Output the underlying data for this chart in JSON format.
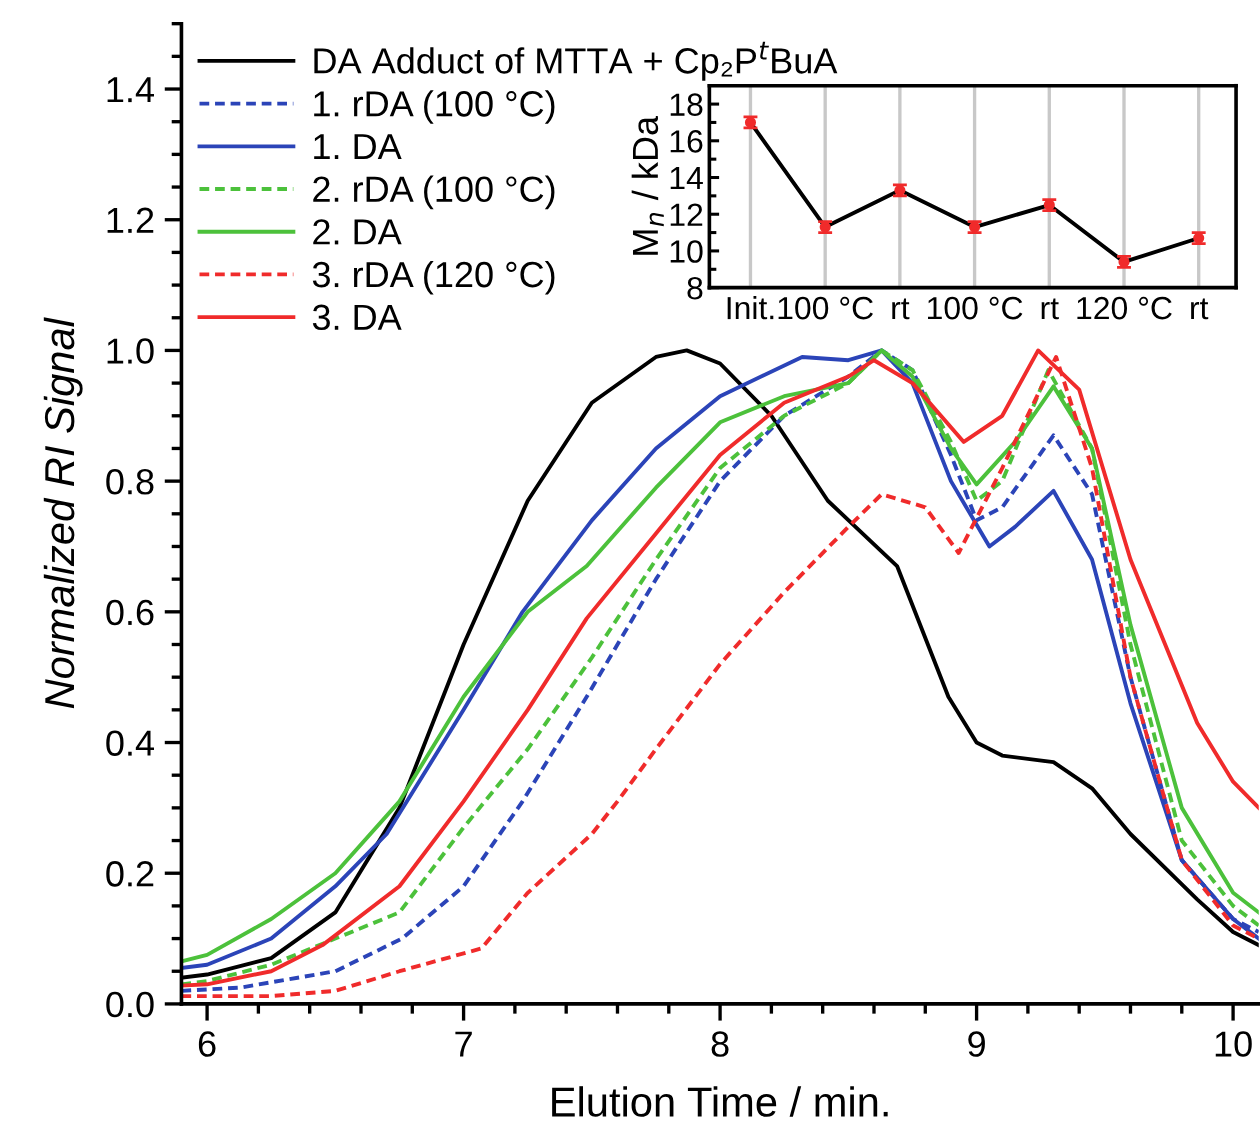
{
  "chart_data": [
    {
      "type": "line",
      "xlabel": "Elution Time / min.",
      "ylabel": "Normalized RI Signal",
      "xlim": [
        5.9,
        10.1
      ],
      "ylim": [
        0,
        1.5
      ],
      "xticks": [
        6,
        7,
        8,
        9,
        10
      ],
      "yticks": [
        {
          "value": 0,
          "label": "0.0"
        },
        0.2,
        0.4,
        0.6,
        0.8,
        {
          "value": 1,
          "label": "1.0"
        },
        1.2,
        1.4
      ],
      "grid": false,
      "legend": "top left",
      "marker": "none",
      "series": [
        {
          "name": "DA Adduct of MTTA + Cp₂P$^{t}$BuA",
          "color": "#000000",
          "line_style": "solid",
          "x": [
            5.9,
            6.0,
            6.25,
            6.5,
            6.75,
            7.0,
            7.25,
            7.5,
            7.75,
            7.87,
            8.0,
            8.2,
            8.42,
            8.69,
            8.89,
            9.0,
            9.1,
            9.3,
            9.45,
            9.6,
            9.86,
            10.0,
            10.1
          ],
          "values": [
            0.04,
            0.045,
            0.07,
            0.14,
            0.3,
            0.55,
            0.77,
            0.92,
            0.99,
            1.0,
            0.98,
            0.9,
            0.77,
            0.67,
            0.47,
            0.4,
            0.38,
            0.37,
            0.33,
            0.26,
            0.16,
            0.11,
            0.09
          ]
        },
        {
          "name": "1. rDA (100 °C)",
          "color": "#2b44b8",
          "line_style": "dashed",
          "x": [
            5.9,
            6.13,
            6.5,
            6.76,
            7.0,
            7.23,
            7.48,
            7.75,
            8.0,
            8.25,
            8.5,
            8.63,
            8.75,
            8.9,
            9.0,
            9.1,
            9.3,
            9.45,
            9.6,
            9.8,
            10.0,
            10.1
          ],
          "values": [
            0.02,
            0.025,
            0.05,
            0.1,
            0.18,
            0.31,
            0.47,
            0.65,
            0.8,
            0.9,
            0.96,
            1.0,
            0.97,
            0.84,
            0.74,
            0.76,
            0.87,
            0.78,
            0.5,
            0.22,
            0.13,
            0.11
          ]
        },
        {
          "name": "1. DA",
          "color": "#2b44b8",
          "line_style": "solid",
          "x": [
            5.9,
            6.0,
            6.25,
            6.5,
            6.7,
            7.0,
            7.23,
            7.5,
            7.75,
            8.0,
            8.32,
            8.5,
            8.63,
            8.75,
            8.9,
            9.05,
            9.15,
            9.3,
            9.45,
            9.6,
            9.8,
            10.0,
            10.1
          ],
          "values": [
            0.055,
            0.06,
            0.1,
            0.18,
            0.26,
            0.45,
            0.6,
            0.74,
            0.85,
            0.93,
            0.99,
            0.985,
            1.0,
            0.95,
            0.8,
            0.7,
            0.73,
            0.785,
            0.68,
            0.46,
            0.22,
            0.13,
            0.1
          ]
        },
        {
          "name": "2. rDA (100 °C)",
          "color": "#4cc13b",
          "line_style": "dashed",
          "x": [
            5.9,
            6.0,
            6.25,
            6.5,
            6.75,
            7.0,
            7.25,
            7.5,
            7.75,
            8.0,
            8.25,
            8.5,
            8.63,
            8.75,
            8.9,
            9.0,
            9.1,
            9.28,
            9.45,
            9.6,
            9.8,
            10.0,
            10.1
          ],
          "values": [
            0.03,
            0.035,
            0.06,
            0.1,
            0.14,
            0.27,
            0.39,
            0.53,
            0.68,
            0.82,
            0.9,
            0.95,
            1.0,
            0.97,
            0.86,
            0.77,
            0.8,
            0.97,
            0.85,
            0.55,
            0.25,
            0.15,
            0.12
          ]
        },
        {
          "name": "2. DA",
          "color": "#4cc13b",
          "line_style": "solid",
          "x": [
            5.9,
            6.0,
            6.25,
            6.5,
            6.75,
            7.0,
            7.25,
            7.48,
            7.75,
            8.0,
            8.25,
            8.5,
            8.63,
            8.75,
            8.9,
            9.0,
            9.15,
            9.3,
            9.45,
            9.6,
            9.8,
            10.0,
            10.1
          ],
          "values": [
            0.065,
            0.075,
            0.13,
            0.2,
            0.31,
            0.47,
            0.6,
            0.67,
            0.79,
            0.89,
            0.93,
            0.95,
            1.0,
            0.96,
            0.85,
            0.795,
            0.86,
            0.945,
            0.85,
            0.58,
            0.3,
            0.17,
            0.14
          ]
        },
        {
          "name": "3. rDA (120 °C)",
          "color": "#f02b2b",
          "line_style": "dashed",
          "x": [
            5.9,
            6.25,
            6.5,
            6.75,
            7.07,
            7.25,
            7.5,
            7.6,
            7.75,
            8.0,
            8.25,
            8.5,
            8.63,
            8.8,
            8.93,
            9.1,
            9.31,
            9.45,
            9.6,
            9.8,
            10.0,
            10.1
          ],
          "values": [
            0.012,
            0.012,
            0.02,
            0.05,
            0.085,
            0.17,
            0.26,
            0.31,
            0.39,
            0.52,
            0.63,
            0.73,
            0.78,
            0.76,
            0.69,
            0.82,
            0.99,
            0.82,
            0.5,
            0.22,
            0.12,
            0.1
          ]
        },
        {
          "name": "3. DA",
          "color": "#f02b2b",
          "line_style": "solid",
          "x": [
            5.9,
            6.0,
            6.25,
            6.45,
            6.75,
            7.0,
            7.25,
            7.48,
            7.75,
            8.0,
            8.25,
            8.5,
            8.6,
            8.75,
            8.95,
            9.1,
            9.24,
            9.4,
            9.6,
            9.86,
            10.0,
            10.1
          ],
          "values": [
            0.028,
            0.03,
            0.05,
            0.09,
            0.18,
            0.31,
            0.45,
            0.59,
            0.72,
            0.84,
            0.92,
            0.96,
            0.985,
            0.95,
            0.86,
            0.9,
            1.0,
            0.94,
            0.68,
            0.43,
            0.34,
            0.3
          ]
        }
      ]
    },
    {
      "type": "line",
      "ylabel": "M$_{n}$ / kDa",
      "categories": [
        "Init.",
        "100 °C",
        "rt",
        "100 °C",
        "rt",
        "120 °C",
        "rt"
      ],
      "ylim": [
        8,
        19
      ],
      "yticks": [
        8,
        10,
        12,
        14,
        16,
        18
      ],
      "grid": "x",
      "marker": "circle",
      "series": [
        {
          "color": "#000000",
          "colors": [
            "#f02b2b",
            "#f02b2b",
            "#f02b2b",
            "#f02b2b",
            "#f02b2b",
            "#f02b2b",
            "#f02b2b"
          ],
          "values": [
            17.0,
            11.3,
            13.3,
            11.3,
            12.5,
            9.4,
            10.7
          ],
          "errors": [
            0.3,
            0.3,
            0.3,
            0.3,
            0.3,
            0.3,
            0.3
          ]
        }
      ]
    }
  ]
}
